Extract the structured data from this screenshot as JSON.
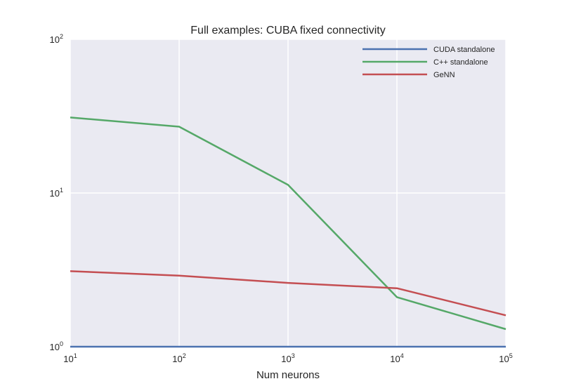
{
  "chart_data": {
    "type": "line",
    "title": "Full examples: CUBA fixed connectivity",
    "xlabel": "Num neurons",
    "ylabel": "",
    "xscale": "log",
    "yscale": "log",
    "xlim": [
      10,
      100000
    ],
    "ylim": [
      1,
      100
    ],
    "x_ticks": [
      {
        "base": "10",
        "exp": "1",
        "value": 10
      },
      {
        "base": "10",
        "exp": "2",
        "value": 100
      },
      {
        "base": "10",
        "exp": "3",
        "value": 1000
      },
      {
        "base": "10",
        "exp": "4",
        "value": 10000
      },
      {
        "base": "10",
        "exp": "5",
        "value": 100000
      }
    ],
    "y_ticks": [
      {
        "base": "10",
        "exp": "0",
        "value": 1
      },
      {
        "base": "10",
        "exp": "1",
        "value": 10
      },
      {
        "base": "10",
        "exp": "2",
        "value": 100
      }
    ],
    "grid": true,
    "legend_position": "top-right",
    "x": [
      10,
      100,
      1000,
      10000,
      100000
    ],
    "series": [
      {
        "name": "CUDA standalone",
        "color": "#4c72b0",
        "values": [
          1.0,
          1.0,
          1.0,
          1.0,
          1.0
        ]
      },
      {
        "name": "C++ standalone",
        "color": "#55a868",
        "values": [
          31.0,
          27.0,
          11.3,
          2.1,
          1.3
        ]
      },
      {
        "name": "GeNN",
        "color": "#c44e52",
        "values": [
          3.1,
          2.9,
          2.6,
          2.4,
          1.6
        ]
      }
    ],
    "background": "#eaeaf2",
    "grid_color": "#ffffff"
  }
}
